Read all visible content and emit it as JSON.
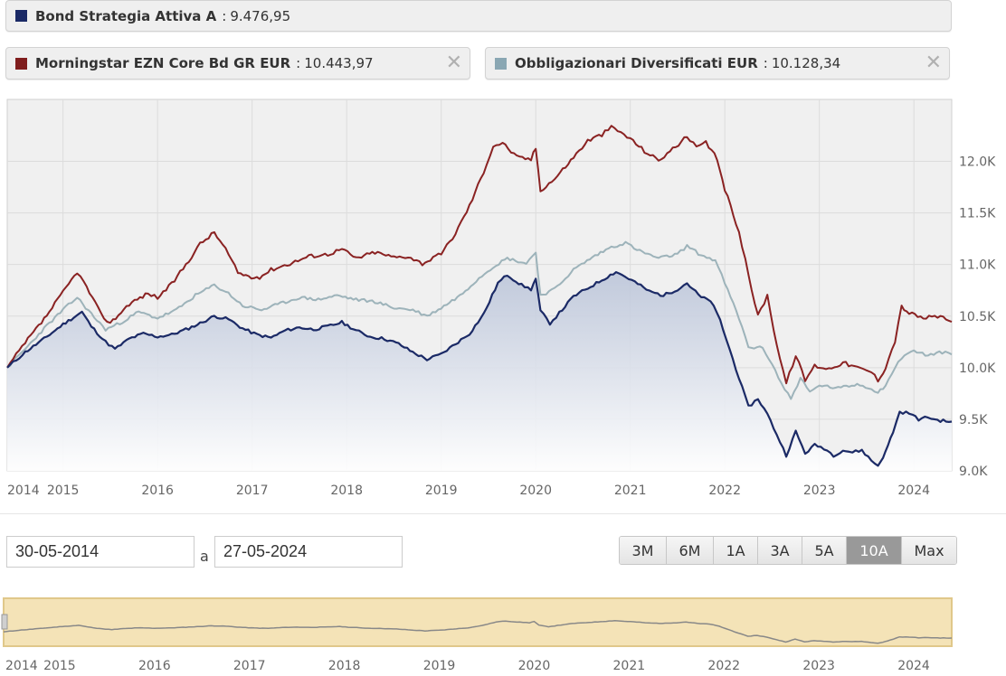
{
  "legend": {
    "primary": {
      "name": "Bond Strategia Attiva A",
      "sep": ":",
      "value": "9.476,95",
      "color": "#1b2a66"
    },
    "benchmark": {
      "name": "Morningstar EZN Core Bd GR EUR",
      "sep": ":",
      "value": "10.443,97",
      "color": "#7f1d1d",
      "close": "✕"
    },
    "category": {
      "name": "Obbligazionari Diversificati EUR",
      "sep": ":",
      "value": "10.128,34",
      "color": "#8aa7b3",
      "close": "✕"
    }
  },
  "colors": {
    "fund_line": "#1b2a66",
    "benchmark_line": "#8a2222",
    "category_line": "#9db3ba",
    "plot_bg": "#f0f0f0",
    "fund_fill_top": "#b9c3d8",
    "navigator_bg": "#f4e3b7",
    "navigator_line": "#888888"
  },
  "date_range": {
    "from": "30-05-2014",
    "separator": "a",
    "to": "27-05-2024"
  },
  "range_buttons": [
    {
      "label": "3M",
      "active": false
    },
    {
      "label": "6M",
      "active": false
    },
    {
      "label": "1A",
      "active": false
    },
    {
      "label": "3A",
      "active": false
    },
    {
      "label": "5A",
      "active": false
    },
    {
      "label": "10A",
      "active": true
    },
    {
      "label": "Max",
      "active": false
    }
  ],
  "chart_data": {
    "type": "line",
    "xlim": [
      2014.41,
      2024.4
    ],
    "ylim": [
      9000,
      12600
    ],
    "grid": true,
    "legend": "top",
    "x_ticks": [
      {
        "label": "2014",
        "value": 2014.41
      },
      {
        "label": "2015",
        "value": 2015.0
      },
      {
        "label": "2016",
        "value": 2016.0
      },
      {
        "label": "2017",
        "value": 2017.0
      },
      {
        "label": "2018",
        "value": 2018.0
      },
      {
        "label": "2019",
        "value": 2019.0
      },
      {
        "label": "2020",
        "value": 2020.0
      },
      {
        "label": "2021",
        "value": 2021.0
      },
      {
        "label": "2022",
        "value": 2022.0
      },
      {
        "label": "2023",
        "value": 2023.0
      },
      {
        "label": "2024",
        "value": 2024.0
      }
    ],
    "y_ticks": [
      {
        "label": "9.0K",
        "value": 9000
      },
      {
        "label": "9.5K",
        "value": 9500
      },
      {
        "label": "10.0K",
        "value": 10000
      },
      {
        "label": "10.5K",
        "value": 10500
      },
      {
        "label": "11.0K",
        "value": 11000
      },
      {
        "label": "11.5K",
        "value": 11500
      },
      {
        "label": "12.0K",
        "value": 12000
      }
    ],
    "series": [
      {
        "name": "Bond Strategia Attiva A",
        "role": "fund",
        "points": [
          [
            2014.41,
            10000
          ],
          [
            2014.6,
            10150
          ],
          [
            2014.8,
            10280
          ],
          [
            2015.0,
            10420
          ],
          [
            2015.2,
            10540
          ],
          [
            2015.3,
            10400
          ],
          [
            2015.45,
            10250
          ],
          [
            2015.55,
            10180
          ],
          [
            2015.7,
            10280
          ],
          [
            2015.85,
            10330
          ],
          [
            2016.0,
            10300
          ],
          [
            2016.15,
            10320
          ],
          [
            2016.3,
            10370
          ],
          [
            2016.45,
            10430
          ],
          [
            2016.6,
            10500
          ],
          [
            2016.75,
            10470
          ],
          [
            2016.9,
            10380
          ],
          [
            2017.05,
            10320
          ],
          [
            2017.2,
            10290
          ],
          [
            2017.35,
            10360
          ],
          [
            2017.5,
            10390
          ],
          [
            2017.65,
            10370
          ],
          [
            2017.8,
            10400
          ],
          [
            2017.95,
            10440
          ],
          [
            2018.1,
            10360
          ],
          [
            2018.25,
            10300
          ],
          [
            2018.4,
            10280
          ],
          [
            2018.55,
            10230
          ],
          [
            2018.7,
            10150
          ],
          [
            2018.85,
            10080
          ],
          [
            2019.0,
            10130
          ],
          [
            2019.15,
            10230
          ],
          [
            2019.3,
            10330
          ],
          [
            2019.45,
            10520
          ],
          [
            2019.6,
            10820
          ],
          [
            2019.7,
            10900
          ],
          [
            2019.85,
            10800
          ],
          [
            2019.95,
            10760
          ],
          [
            2020.0,
            10860
          ],
          [
            2020.05,
            10550
          ],
          [
            2020.15,
            10430
          ],
          [
            2020.25,
            10530
          ],
          [
            2020.4,
            10690
          ],
          [
            2020.55,
            10770
          ],
          [
            2020.7,
            10850
          ],
          [
            2020.85,
            10930
          ],
          [
            2020.95,
            10880
          ],
          [
            2021.05,
            10830
          ],
          [
            2021.2,
            10740
          ],
          [
            2021.35,
            10700
          ],
          [
            2021.5,
            10760
          ],
          [
            2021.6,
            10820
          ],
          [
            2021.75,
            10680
          ],
          [
            2021.85,
            10650
          ],
          [
            2021.95,
            10460
          ],
          [
            2022.05,
            10180
          ],
          [
            2022.15,
            9900
          ],
          [
            2022.25,
            9620
          ],
          [
            2022.35,
            9700
          ],
          [
            2022.45,
            9550
          ],
          [
            2022.55,
            9350
          ],
          [
            2022.65,
            9150
          ],
          [
            2022.75,
            9380
          ],
          [
            2022.85,
            9170
          ],
          [
            2022.95,
            9250
          ],
          [
            2023.05,
            9220
          ],
          [
            2023.15,
            9150
          ],
          [
            2023.25,
            9200
          ],
          [
            2023.35,
            9180
          ],
          [
            2023.45,
            9200
          ],
          [
            2023.55,
            9100
          ],
          [
            2023.62,
            9050
          ],
          [
            2023.7,
            9180
          ],
          [
            2023.78,
            9380
          ],
          [
            2023.85,
            9570
          ],
          [
            2023.95,
            9560
          ],
          [
            2024.05,
            9500
          ],
          [
            2024.15,
            9520
          ],
          [
            2024.25,
            9490
          ],
          [
            2024.4,
            9477
          ]
        ]
      },
      {
        "name": "Obbligazionari Diversificati EUR",
        "role": "category",
        "points": [
          [
            2014.41,
            10000
          ],
          [
            2014.6,
            10180
          ],
          [
            2014.8,
            10380
          ],
          [
            2015.0,
            10560
          ],
          [
            2015.15,
            10680
          ],
          [
            2015.3,
            10520
          ],
          [
            2015.45,
            10370
          ],
          [
            2015.6,
            10430
          ],
          [
            2015.8,
            10540
          ],
          [
            2016.0,
            10480
          ],
          [
            2016.2,
            10560
          ],
          [
            2016.4,
            10700
          ],
          [
            2016.6,
            10800
          ],
          [
            2016.75,
            10720
          ],
          [
            2016.9,
            10600
          ],
          [
            2017.1,
            10560
          ],
          [
            2017.3,
            10620
          ],
          [
            2017.5,
            10680
          ],
          [
            2017.7,
            10660
          ],
          [
            2017.9,
            10700
          ],
          [
            2018.1,
            10660
          ],
          [
            2018.3,
            10640
          ],
          [
            2018.5,
            10580
          ],
          [
            2018.7,
            10560
          ],
          [
            2018.85,
            10500
          ],
          [
            2019.0,
            10580
          ],
          [
            2019.2,
            10700
          ],
          [
            2019.4,
            10870
          ],
          [
            2019.55,
            10980
          ],
          [
            2019.7,
            11060
          ],
          [
            2019.9,
            11010
          ],
          [
            2020.0,
            11120
          ],
          [
            2020.05,
            10700
          ],
          [
            2020.2,
            10760
          ],
          [
            2020.4,
            10950
          ],
          [
            2020.6,
            11070
          ],
          [
            2020.8,
            11170
          ],
          [
            2020.95,
            11210
          ],
          [
            2021.1,
            11130
          ],
          [
            2021.3,
            11060
          ],
          [
            2021.5,
            11100
          ],
          [
            2021.6,
            11180
          ],
          [
            2021.75,
            11090
          ],
          [
            2021.9,
            11040
          ],
          [
            2022.0,
            10820
          ],
          [
            2022.15,
            10480
          ],
          [
            2022.25,
            10200
          ],
          [
            2022.4,
            10190
          ],
          [
            2022.5,
            10040
          ],
          [
            2022.6,
            9840
          ],
          [
            2022.7,
            9700
          ],
          [
            2022.8,
            9900
          ],
          [
            2022.9,
            9760
          ],
          [
            2023.0,
            9830
          ],
          [
            2023.2,
            9800
          ],
          [
            2023.4,
            9840
          ],
          [
            2023.55,
            9800
          ],
          [
            2023.62,
            9760
          ],
          [
            2023.7,
            9830
          ],
          [
            2023.8,
            10000
          ],
          [
            2023.9,
            10130
          ],
          [
            2024.0,
            10160
          ],
          [
            2024.15,
            10120
          ],
          [
            2024.3,
            10150
          ],
          [
            2024.4,
            10128
          ]
        ]
      },
      {
        "name": "Morningstar EZN Core Bd GR EUR",
        "role": "benchmark",
        "points": [
          [
            2014.41,
            10000
          ],
          [
            2014.6,
            10240
          ],
          [
            2014.8,
            10470
          ],
          [
            2015.0,
            10730
          ],
          [
            2015.15,
            10930
          ],
          [
            2015.25,
            10780
          ],
          [
            2015.4,
            10520
          ],
          [
            2015.5,
            10430
          ],
          [
            2015.7,
            10620
          ],
          [
            2015.9,
            10720
          ],
          [
            2016.0,
            10680
          ],
          [
            2016.15,
            10810
          ],
          [
            2016.3,
            11000
          ],
          [
            2016.45,
            11200
          ],
          [
            2016.6,
            11310
          ],
          [
            2016.72,
            11150
          ],
          [
            2016.85,
            10920
          ],
          [
            2017.05,
            10860
          ],
          [
            2017.2,
            10950
          ],
          [
            2017.4,
            11010
          ],
          [
            2017.6,
            11080
          ],
          [
            2017.8,
            11100
          ],
          [
            2017.95,
            11150
          ],
          [
            2018.1,
            11060
          ],
          [
            2018.3,
            11120
          ],
          [
            2018.5,
            11070
          ],
          [
            2018.65,
            11080
          ],
          [
            2018.8,
            11010
          ],
          [
            2019.0,
            11100
          ],
          [
            2019.15,
            11300
          ],
          [
            2019.3,
            11570
          ],
          [
            2019.45,
            11900
          ],
          [
            2019.55,
            12150
          ],
          [
            2019.65,
            12180
          ],
          [
            2019.8,
            12040
          ],
          [
            2019.95,
            12020
          ],
          [
            2020.0,
            12130
          ],
          [
            2020.05,
            11720
          ],
          [
            2020.2,
            11830
          ],
          [
            2020.4,
            12040
          ],
          [
            2020.55,
            12200
          ],
          [
            2020.7,
            12260
          ],
          [
            2020.8,
            12330
          ],
          [
            2020.9,
            12280
          ],
          [
            2021.0,
            12220
          ],
          [
            2021.15,
            12100
          ],
          [
            2021.3,
            12010
          ],
          [
            2021.45,
            12120
          ],
          [
            2021.6,
            12240
          ],
          [
            2021.7,
            12130
          ],
          [
            2021.8,
            12180
          ],
          [
            2021.92,
            12020
          ],
          [
            2022.0,
            11730
          ],
          [
            2022.15,
            11320
          ],
          [
            2022.25,
            10900
          ],
          [
            2022.35,
            10500
          ],
          [
            2022.45,
            10700
          ],
          [
            2022.55,
            10220
          ],
          [
            2022.65,
            9850
          ],
          [
            2022.75,
            10120
          ],
          [
            2022.85,
            9880
          ],
          [
            2022.95,
            10020
          ],
          [
            2023.1,
            9990
          ],
          [
            2023.25,
            10050
          ],
          [
            2023.4,
            10000
          ],
          [
            2023.55,
            9960
          ],
          [
            2023.62,
            9880
          ],
          [
            2023.7,
            10000
          ],
          [
            2023.8,
            10260
          ],
          [
            2023.87,
            10590
          ],
          [
            2023.95,
            10530
          ],
          [
            2024.1,
            10480
          ],
          [
            2024.25,
            10500
          ],
          [
            2024.4,
            10444
          ]
        ]
      }
    ]
  },
  "navigator": {
    "x_ticks": [
      "2014",
      "2015",
      "2016",
      "2017",
      "2018",
      "2019",
      "2020",
      "2021",
      "2022",
      "2023",
      "2024"
    ]
  }
}
